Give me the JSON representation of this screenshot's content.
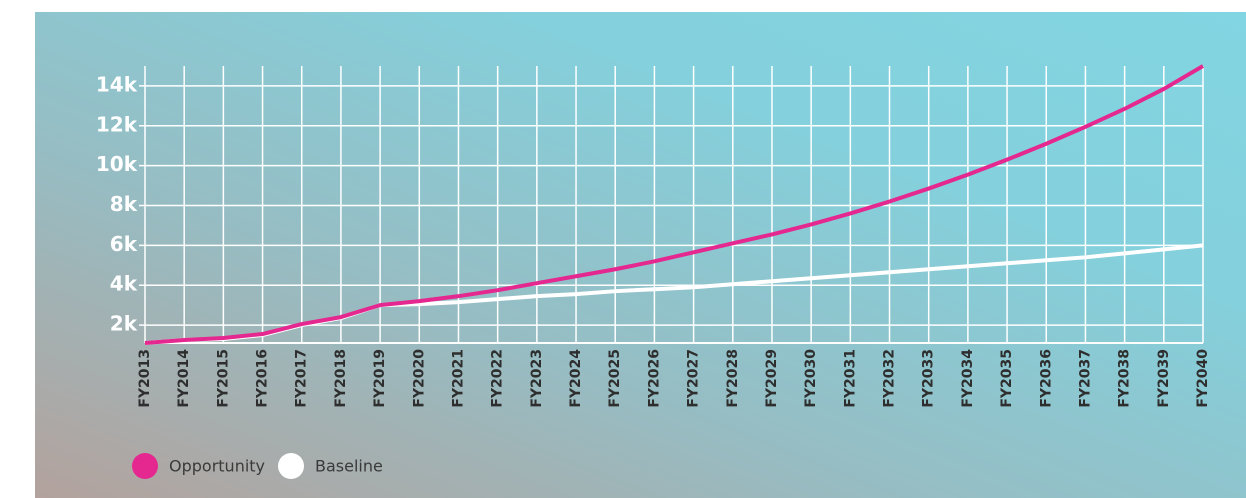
{
  "chart_data": {
    "type": "line",
    "categories": [
      "FY2013",
      "FY2014",
      "FY2015",
      "FY2016",
      "FY2017",
      "FY2018",
      "FY2019",
      "FY2020",
      "FY2021",
      "FY2022",
      "FY2023",
      "FY2024",
      "FY2025",
      "FY2026",
      "FY2027",
      "FY2028",
      "FY2029",
      "FY2030",
      "FY2031",
      "FY2032",
      "FY2033",
      "FY2034",
      "FY2035",
      "FY2036",
      "FY2037",
      "FY2038",
      "FY2039",
      "FY2040"
    ],
    "series": [
      {
        "name": "Opportunity",
        "color": "#e5288f",
        "values": [
          1100,
          1250,
          1350,
          1550,
          2050,
          2400,
          3000,
          3200,
          3450,
          3750,
          4100,
          4450,
          4800,
          5200,
          5650,
          6100,
          6550,
          7050,
          7600,
          8200,
          8850,
          9550,
          10300,
          11100,
          11950,
          12850,
          13850,
          15000
        ]
      },
      {
        "name": "Baseline",
        "color": "#ffffff",
        "values": [
          1100,
          1250,
          1300,
          1500,
          2000,
          2350,
          3000,
          3050,
          3150,
          3300,
          3450,
          3550,
          3700,
          3800,
          3900,
          4050,
          4200,
          4350,
          4500,
          4650,
          4800,
          4950,
          5100,
          5250,
          5400,
          5600,
          5800,
          6000
        ]
      }
    ],
    "ylim": [
      1100,
      15000
    ],
    "yticks": [
      {
        "value": 2000,
        "label": "2k"
      },
      {
        "value": 4000,
        "label": "4k"
      },
      {
        "value": 6000,
        "label": "6k"
      },
      {
        "value": 8000,
        "label": "8k"
      },
      {
        "value": 10000,
        "label": "10k"
      },
      {
        "value": 12000,
        "label": "12k"
      },
      {
        "value": 14000,
        "label": "14k"
      }
    ],
    "grid": true
  }
}
